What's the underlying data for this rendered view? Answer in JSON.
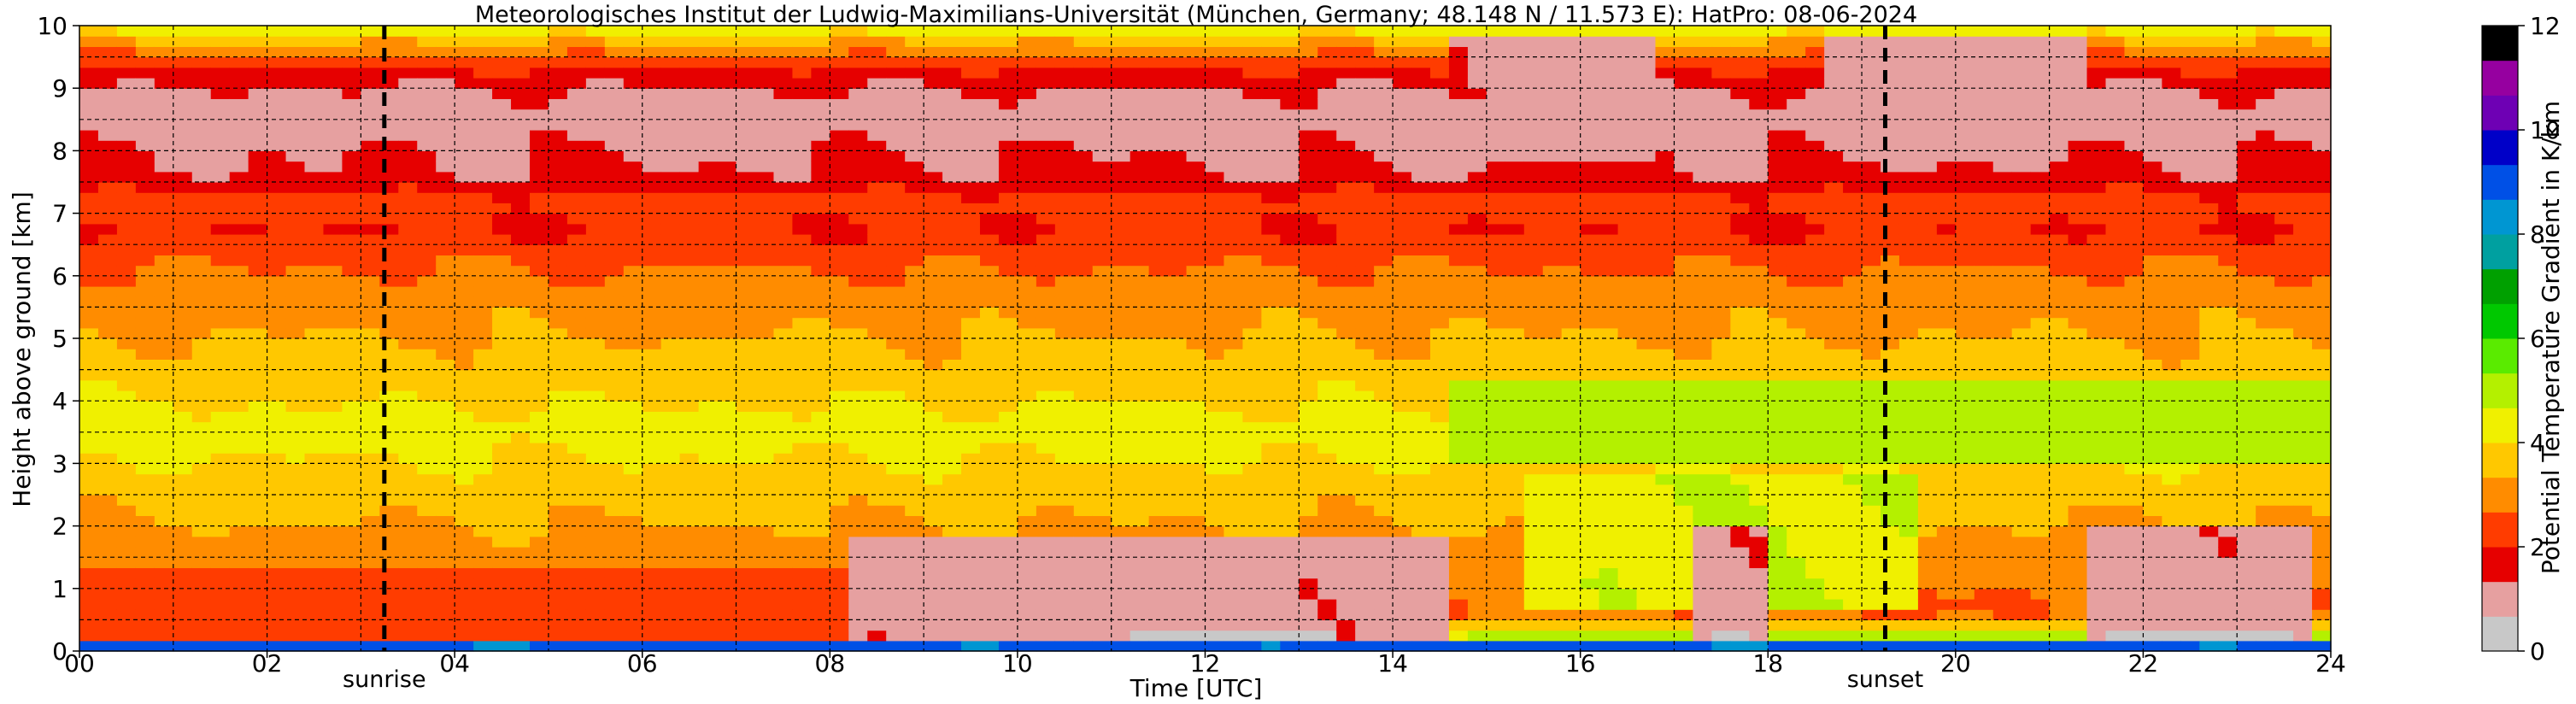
{
  "chart_data": {
    "type": "heatmap",
    "title": "Meteorologisches Institut der Ludwig-Maximilians-Universität (München, Germany; 48.148 N / 11.573 E):    HatPro: 08-06-2024",
    "xlabel": "Time [UTC]",
    "ylabel": "Height above ground [km]",
    "colorbar_label": "Potential Temperature Gradient in K/km",
    "xlim": [
      0,
      24
    ],
    "ylim": [
      0,
      10
    ],
    "clim": [
      0,
      12
    ],
    "x_ticks": [
      "00",
      "02",
      "04",
      "06",
      "08",
      "10",
      "12",
      "14",
      "16",
      "18",
      "20",
      "22",
      "24"
    ],
    "y_ticks": [
      "0",
      "1",
      "2",
      "3",
      "4",
      "5",
      "6",
      "7",
      "8",
      "9",
      "10"
    ],
    "colorbar_ticks": [
      "0",
      "2",
      "4",
      "6",
      "8",
      "10",
      "12"
    ],
    "grid": true,
    "markers": [
      {
        "label": "sunrise",
        "x": 3.25
      },
      {
        "label": "sunset",
        "x": 19.25
      }
    ],
    "colormap": [
      "#c8c8c8",
      "#e6a0a0",
      "#e60000",
      "#ff3c00",
      "#ff8c00",
      "#ffc800",
      "#f0f000",
      "#b4f000",
      "#5aeb00",
      "#00c800",
      "#00a000",
      "#00a0a0",
      "#0096d2",
      "#0050e6",
      "#0000c8",
      "#6e00b4",
      "#9600a0",
      "#000000"
    ],
    "gradient_profile_by_height_km": [
      {
        "z": 0.0,
        "v": 11.0
      },
      {
        "z": 0.08,
        "v": 9.0
      },
      {
        "z": 0.15,
        "v": 6.0
      },
      {
        "z": 0.3,
        "v": 4.2
      },
      {
        "z": 0.6,
        "v": 2.6
      },
      {
        "z": 1.0,
        "v": 2.7
      },
      {
        "z": 1.5,
        "v": 3.0
      },
      {
        "z": 2.5,
        "v": 3.6
      },
      {
        "z": 3.5,
        "v": 4.3
      },
      {
        "z": 4.5,
        "v": 3.6
      },
      {
        "z": 5.5,
        "v": 3.1
      },
      {
        "z": 6.2,
        "v": 2.6
      },
      {
        "z": 6.7,
        "v": 2.0
      },
      {
        "z": 7.2,
        "v": 2.3
      },
      {
        "z": 7.6,
        "v": 1.4
      },
      {
        "z": 8.0,
        "v": 1.3
      },
      {
        "z": 8.5,
        "v": 1.0
      },
      {
        "z": 9.0,
        "v": 1.3
      },
      {
        "z": 9.4,
        "v": 2.2
      },
      {
        "z": 9.8,
        "v": 3.6
      },
      {
        "z": 10.0,
        "v": 4.6
      }
    ],
    "red_regions": [
      {
        "t0": 8.3,
        "t1": 14.6,
        "z0": 0.15,
        "z1": 1.9,
        "v": 1.1
      },
      {
        "t0": 17.3,
        "t1": 18.0,
        "z0": 0.1,
        "z1": 2.0,
        "v": 1.1
      },
      {
        "t0": 21.5,
        "t1": 23.8,
        "z0": 0.1,
        "z1": 2.0,
        "v": 1.1
      },
      {
        "t0": 0.0,
        "t1": 8.3,
        "z0": 0.2,
        "z1": 1.4,
        "v": 2.3
      },
      {
        "t0": 14.6,
        "t1": 16.8,
        "z0": 7.8,
        "z1": 9.9,
        "v": 1.2
      },
      {
        "t0": 18.6,
        "t1": 21.4,
        "z0": 7.8,
        "z1": 9.9,
        "v": 1.2
      }
    ],
    "green_regions": [
      {
        "t0": 14.7,
        "t1": 24.0,
        "z0": 3.0,
        "z1": 4.4,
        "v": 5.0
      },
      {
        "t0": 15.5,
        "t1": 19.5,
        "z0": 0.6,
        "z1": 2.8,
        "v": 4.6
      }
    ],
    "gray_patches": [
      {
        "t0": 11.3,
        "t1": 13.4,
        "z0": 0.15,
        "z1": 0.3
      },
      {
        "t0": 17.4,
        "t1": 17.9,
        "z0": 0.1,
        "z1": 0.3
      },
      {
        "t0": 21.6,
        "t1": 23.6,
        "z0": 0.1,
        "z1": 0.35
      }
    ]
  }
}
